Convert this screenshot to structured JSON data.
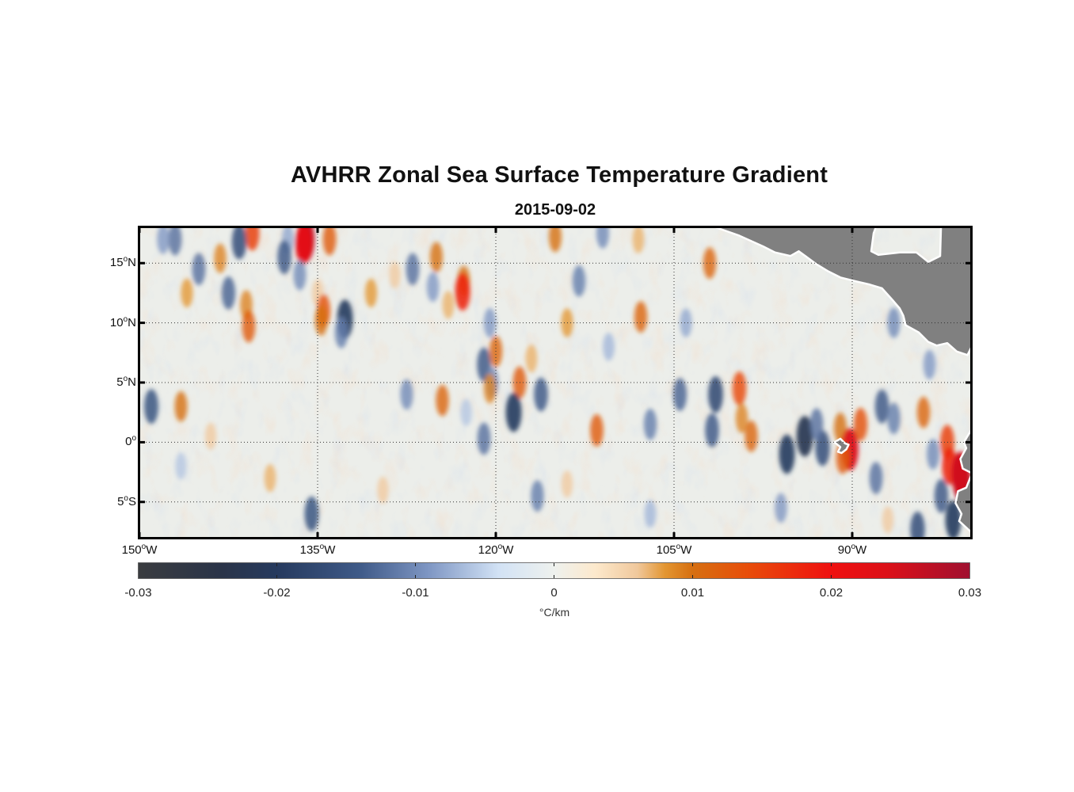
{
  "figure": {
    "title": "AVHRR Zonal Sea Surface Temperature Gradient",
    "date": "2015-09-02"
  },
  "map": {
    "type": "heatmap",
    "variable": "zonal SST gradient",
    "lon_range": [
      -150,
      -80
    ],
    "lat_range": [
      -8,
      18
    ],
    "grid": "dotted",
    "land_color": "#808080",
    "lat_ticks": [
      {
        "value": 15,
        "num": "15",
        "hem": "N"
      },
      {
        "value": 10,
        "num": "10",
        "hem": "N"
      },
      {
        "value": 5,
        "num": "5",
        "hem": "N"
      },
      {
        "value": 0,
        "num": "0",
        "hem": ""
      },
      {
        "value": -5,
        "num": "5",
        "hem": "S"
      }
    ],
    "lon_ticks": [
      {
        "value": -150,
        "num": "150",
        "hem": "W"
      },
      {
        "value": -135,
        "num": "135",
        "hem": "W"
      },
      {
        "value": -120,
        "num": "120",
        "hem": "W"
      },
      {
        "value": -105,
        "num": "105",
        "hem": "W"
      },
      {
        "value": -90,
        "num": "90",
        "hem": "W"
      }
    ]
  },
  "chart_data": {
    "type": "heatmap",
    "title": "AVHRR Zonal Sea Surface Temperature Gradient",
    "subtitle": "2015-09-02",
    "xlim": [
      -150,
      -80
    ],
    "ylim": [
      -8,
      18
    ],
    "features": [
      {
        "lon": -136.0,
        "lat": 17.0,
        "value": 0.026
      },
      {
        "lon": -136.2,
        "lat": 16.6,
        "value": 0.022
      },
      {
        "lon": -137.5,
        "lat": 17.0,
        "value": -0.008
      },
      {
        "lon": -134.0,
        "lat": 17.0,
        "value": 0.012
      },
      {
        "lon": -140.5,
        "lat": 17.5,
        "value": 0.015
      },
      {
        "lon": -141.6,
        "lat": 16.8,
        "value": -0.016
      },
      {
        "lon": -147.0,
        "lat": 17.0,
        "value": -0.012
      },
      {
        "lon": -143.2,
        "lat": 15.4,
        "value": 0.009
      },
      {
        "lon": -145.0,
        "lat": 14.5,
        "value": -0.012
      },
      {
        "lon": -146.0,
        "lat": 12.5,
        "value": 0.008
      },
      {
        "lon": -142.5,
        "lat": 12.5,
        "value": -0.013
      },
      {
        "lon": -141.0,
        "lat": 11.5,
        "value": 0.009
      },
      {
        "lon": -140.8,
        "lat": 9.7,
        "value": 0.012
      },
      {
        "lon": -137.8,
        "lat": 15.5,
        "value": -0.014
      },
      {
        "lon": -136.5,
        "lat": 14.0,
        "value": -0.01
      },
      {
        "lon": -135.0,
        "lat": 12.5,
        "value": 0.006
      },
      {
        "lon": -134.5,
        "lat": 11.0,
        "value": 0.013
      },
      {
        "lon": -134.7,
        "lat": 10.2,
        "value": 0.01
      },
      {
        "lon": -132.7,
        "lat": 10.3,
        "value": -0.02
      },
      {
        "lon": -133.0,
        "lat": 9.2,
        "value": -0.011
      },
      {
        "lon": -130.5,
        "lat": 12.5,
        "value": 0.008
      },
      {
        "lon": -128.5,
        "lat": 14.0,
        "value": 0.006
      },
      {
        "lon": -127.0,
        "lat": 14.5,
        "value": -0.012
      },
      {
        "lon": -125.0,
        "lat": 15.5,
        "value": 0.01
      },
      {
        "lon": -125.3,
        "lat": 13.0,
        "value": -0.009
      },
      {
        "lon": -122.7,
        "lat": 13.5,
        "value": 0.01
      },
      {
        "lon": -122.8,
        "lat": 12.6,
        "value": 0.018
      },
      {
        "lon": -124.0,
        "lat": 11.5,
        "value": 0.007
      },
      {
        "lon": -120.5,
        "lat": 10.0,
        "value": -0.009
      },
      {
        "lon": -121.0,
        "lat": 6.5,
        "value": -0.014
      },
      {
        "lon": -120.0,
        "lat": 7.6,
        "value": 0.011
      },
      {
        "lon": -120.3,
        "lat": 5.0,
        "value": -0.01
      },
      {
        "lon": -120.5,
        "lat": 4.5,
        "value": 0.009
      },
      {
        "lon": -118.0,
        "lat": 5.0,
        "value": 0.012
      },
      {
        "lon": -117.0,
        "lat": 7.0,
        "value": 0.007
      },
      {
        "lon": -118.5,
        "lat": 2.5,
        "value": -0.02
      },
      {
        "lon": -116.2,
        "lat": 4.0,
        "value": -0.014
      },
      {
        "lon": -121.0,
        "lat": 0.3,
        "value": -0.012
      },
      {
        "lon": -127.5,
        "lat": 4.0,
        "value": -0.01
      },
      {
        "lon": -124.5,
        "lat": 3.5,
        "value": 0.011
      },
      {
        "lon": -122.5,
        "lat": 2.5,
        "value": -0.006
      },
      {
        "lon": -113.0,
        "lat": 13.5,
        "value": -0.011
      },
      {
        "lon": -114.0,
        "lat": 10.0,
        "value": 0.008
      },
      {
        "lon": -115.0,
        "lat": 17.2,
        "value": 0.01
      },
      {
        "lon": -111.0,
        "lat": 17.5,
        "value": -0.01
      },
      {
        "lon": -108.0,
        "lat": 17.0,
        "value": 0.007
      },
      {
        "lon": -107.8,
        "lat": 10.5,
        "value": 0.011
      },
      {
        "lon": -110.5,
        "lat": 8.0,
        "value": -0.007
      },
      {
        "lon": -111.5,
        "lat": 1.0,
        "value": 0.012
      },
      {
        "lon": -107.0,
        "lat": 1.5,
        "value": -0.011
      },
      {
        "lon": -104.5,
        "lat": 4.0,
        "value": -0.013
      },
      {
        "lon": -102.0,
        "lat": 15.0,
        "value": 0.011
      },
      {
        "lon": -104.0,
        "lat": 10.0,
        "value": -0.008
      },
      {
        "lon": -99.5,
        "lat": 4.5,
        "value": 0.014
      },
      {
        "lon": -99.3,
        "lat": 2.0,
        "value": 0.009
      },
      {
        "lon": -98.5,
        "lat": 0.5,
        "value": 0.011
      },
      {
        "lon": -101.5,
        "lat": 4.0,
        "value": -0.017
      },
      {
        "lon": -101.8,
        "lat": 1.0,
        "value": -0.014
      },
      {
        "lon": -94.0,
        "lat": 0.5,
        "value": -0.022
      },
      {
        "lon": -95.5,
        "lat": -1.0,
        "value": -0.02
      },
      {
        "lon": -92.5,
        "lat": -0.5,
        "value": -0.016
      },
      {
        "lon": -93.0,
        "lat": 1.5,
        "value": -0.012
      },
      {
        "lon": -91.0,
        "lat": 1.2,
        "value": 0.01
      },
      {
        "lon": -89.3,
        "lat": 1.5,
        "value": 0.013
      },
      {
        "lon": -90.2,
        "lat": -0.6,
        "value": 0.024
      },
      {
        "lon": -90.8,
        "lat": -1.3,
        "value": 0.012
      },
      {
        "lon": -88.0,
        "lat": -3.0,
        "value": -0.012
      },
      {
        "lon": -87.5,
        "lat": 3.0,
        "value": -0.014
      },
      {
        "lon": -86.5,
        "lat": 2.0,
        "value": -0.011
      },
      {
        "lon": -84.0,
        "lat": 2.5,
        "value": 0.011
      },
      {
        "lon": -83.5,
        "lat": 6.5,
        "value": -0.009
      },
      {
        "lon": -86.5,
        "lat": 10.0,
        "value": -0.01
      },
      {
        "lon": -82.0,
        "lat": 0.0,
        "value": 0.015
      },
      {
        "lon": -81.8,
        "lat": -2.0,
        "value": 0.018
      },
      {
        "lon": -80.8,
        "lat": -3.0,
        "value": 0.028
      },
      {
        "lon": -80.9,
        "lat": -2.6,
        "value": 0.025
      },
      {
        "lon": -82.5,
        "lat": -4.5,
        "value": -0.014
      },
      {
        "lon": -81.5,
        "lat": -6.5,
        "value": -0.02
      },
      {
        "lon": -84.5,
        "lat": -7.3,
        "value": -0.016
      },
      {
        "lon": -83.2,
        "lat": -1.0,
        "value": -0.01
      },
      {
        "lon": -149.0,
        "lat": 3.0,
        "value": -0.015
      },
      {
        "lon": -146.5,
        "lat": 3.0,
        "value": 0.01
      },
      {
        "lon": -148.0,
        "lat": 17.0,
        "value": -0.009
      },
      {
        "lon": -146.5,
        "lat": -2.0,
        "value": -0.006
      },
      {
        "lon": -144.0,
        "lat": 0.5,
        "value": 0.006
      },
      {
        "lon": -139.0,
        "lat": -3.0,
        "value": 0.007
      },
      {
        "lon": -135.5,
        "lat": -6.0,
        "value": -0.015
      },
      {
        "lon": -129.5,
        "lat": -4.0,
        "value": 0.006
      },
      {
        "lon": -116.5,
        "lat": -4.5,
        "value": -0.011
      },
      {
        "lon": -114.0,
        "lat": -3.5,
        "value": 0.006
      },
      {
        "lon": -107.0,
        "lat": -6.0,
        "value": -0.007
      },
      {
        "lon": -96.0,
        "lat": -5.5,
        "value": -0.009
      },
      {
        "lon": -87.0,
        "lat": -6.5,
        "value": 0.006
      }
    ]
  },
  "colorbar": {
    "range": [
      -0.03,
      0.03
    ],
    "ticks": [
      "-0.03",
      "-0.02",
      "-0.01",
      "0",
      "0.01",
      "0.02",
      "0.03"
    ],
    "units": "°C/km",
    "stops": [
      [
        -0.03,
        "#3a3c40"
      ],
      [
        -0.024,
        "#2a3448"
      ],
      [
        -0.02,
        "#263a5e"
      ],
      [
        -0.014,
        "#3f5a88"
      ],
      [
        -0.009,
        "#7f97c4"
      ],
      [
        -0.004,
        "#d2e2f5"
      ],
      [
        0.0,
        "#eef1ee"
      ],
      [
        0.003,
        "#fde9cc"
      ],
      [
        0.006,
        "#f0c89c"
      ],
      [
        0.008,
        "#e39632"
      ],
      [
        0.01,
        "#d66f10"
      ],
      [
        0.014,
        "#e84d0a"
      ],
      [
        0.02,
        "#ef1010"
      ],
      [
        0.024,
        "#dc1018"
      ],
      [
        0.03,
        "#a01030"
      ]
    ]
  }
}
